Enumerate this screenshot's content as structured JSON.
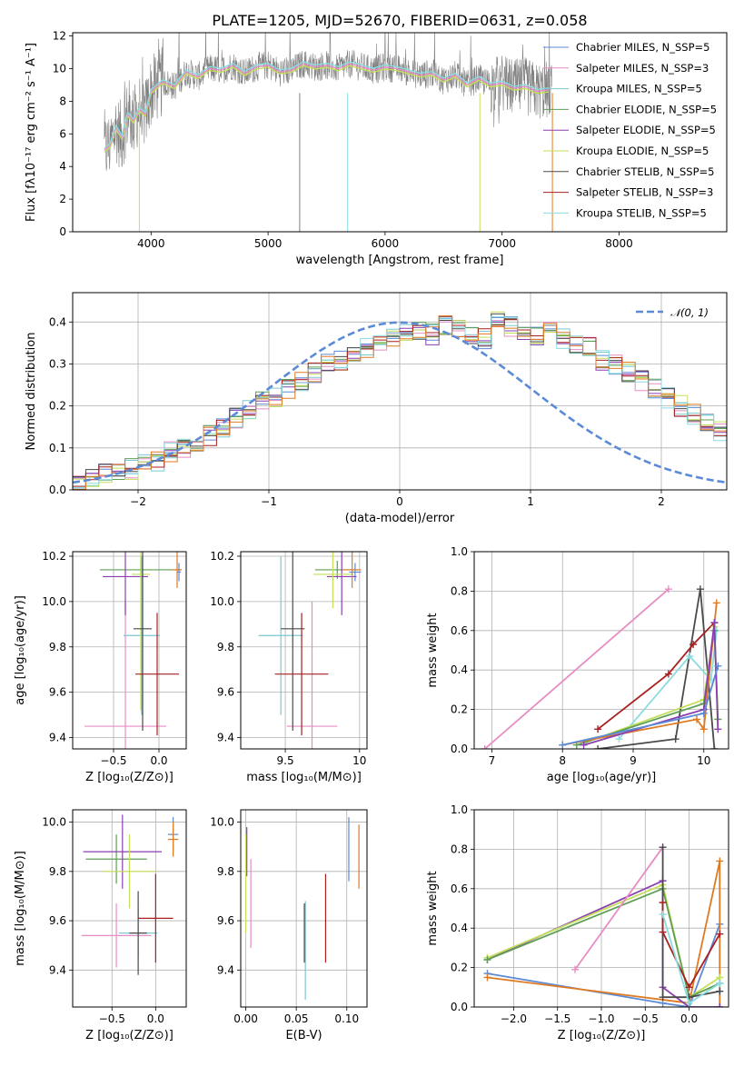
{
  "figure": {
    "title": "PLATE=1205, MJD=52670, FIBERID=0631, z=0.058"
  },
  "colors": {
    "Chabrier MILES": "#5b8ad6",
    "Salpeter MILES": "#e88cc4",
    "Kroupa MILES": "#7cc8d0",
    "Chabrier ELODIE": "#5e9f55",
    "Salpeter ELODIE": "#8b3fb0",
    "Kroupa ELODIE": "#c4df5a",
    "Chabrier STELIB": "#4a4a4a",
    "Salpeter STELIB": "#a82020",
    "Kroupa STELIB": "#8adce0",
    "data": "#808080",
    "orange": "#e07a20"
  },
  "chart_data": [
    {
      "id": "spectrum",
      "type": "line",
      "title": "PLATE=1205, MJD=52670, FIBERID=0631, z=0.058",
      "xlabel": "wavelength [Angstrom, rest frame]",
      "ylabel": "Flux [fλ10⁻¹⁷ erg cm⁻² s⁻¹ A⁻¹]",
      "xlim": [
        3330,
        8920
      ],
      "ylim": [
        0,
        12.2
      ],
      "xticks": [
        4000,
        5000,
        6000,
        7000,
        8000
      ],
      "yticks": [
        0,
        2,
        4,
        6,
        8,
        10,
        12
      ],
      "legend_position": "top-right",
      "series": [
        {
          "name": "Chabrier MILES, N_SSP=5"
        },
        {
          "name": "Salpeter MILES, N_SSP=3"
        },
        {
          "name": "Kroupa MILES, N_SSP=5"
        },
        {
          "name": "Chabrier ELODIE, N_SSP=5"
        },
        {
          "name": "Salpeter ELODIE, N_SSP=5"
        },
        {
          "name": "Kroupa ELODIE, N_SSP=5"
        },
        {
          "name": "Chabrier STELIB, N_SSP=5"
        },
        {
          "name": "Salpeter STELIB, N_SSP=3"
        },
        {
          "name": "Kroupa STELIB, N_SSP=5"
        }
      ],
      "model_curve": {
        "x": [
          3600,
          3650,
          3700,
          3750,
          3800,
          3850,
          3900,
          3950,
          4000,
          4100,
          4200,
          4300,
          4400,
          4500,
          4600,
          4700,
          4800,
          4900,
          5000,
          5100,
          5200,
          5300,
          5400,
          5500,
          5600,
          5700,
          5800,
          5900,
          6000,
          6100,
          6200,
          6300,
          6400,
          6500,
          6600,
          6700,
          6800,
          6900,
          7000,
          7100,
          7200,
          7300,
          7400
        ],
        "y": [
          5.0,
          5.3,
          6.4,
          5.8,
          7.2,
          6.8,
          7.5,
          7.2,
          8.6,
          9.2,
          8.9,
          9.8,
          9.5,
          10.0,
          9.9,
          10.2,
          9.7,
          10.1,
          10.2,
          9.8,
          9.9,
          10.3,
          10.1,
          10.2,
          10.0,
          10.3,
          10.1,
          9.9,
          10.1,
          10.0,
          9.8,
          9.6,
          9.7,
          9.3,
          9.6,
          9.0,
          9.4,
          9.0,
          9.1,
          8.8,
          8.9,
          8.6,
          8.7
        ]
      }
    },
    {
      "id": "residuals",
      "type": "histogram",
      "xlabel": "(data-model)/error",
      "ylabel": "Normed distribution",
      "xlim": [
        -2.5,
        2.5
      ],
      "ylim": [
        0,
        0.47
      ],
      "xticks": [
        -2,
        -1,
        0,
        1,
        2
      ],
      "xticklabels": [
        "−2",
        "−1",
        "0",
        "1",
        "2"
      ],
      "yticks": [
        0.0,
        0.1,
        0.2,
        0.3,
        0.4
      ],
      "legend": [
        "𝒩(0, 1)"
      ],
      "reference": {
        "name": "𝒩(0, 1)",
        "mean": 0,
        "sigma": 1
      },
      "bin_width": 0.1,
      "values": [
        0.02,
        0.03,
        0.04,
        0.04,
        0.05,
        0.06,
        0.07,
        0.09,
        0.1,
        0.11,
        0.13,
        0.15,
        0.17,
        0.19,
        0.21,
        0.22,
        0.24,
        0.26,
        0.28,
        0.3,
        0.31,
        0.33,
        0.34,
        0.35,
        0.36,
        0.38,
        0.38,
        0.37,
        0.39,
        0.38,
        0.37,
        0.36,
        0.4,
        0.39,
        0.38,
        0.37,
        0.38,
        0.36,
        0.35,
        0.34,
        0.31,
        0.3,
        0.28,
        0.26,
        0.24,
        0.22,
        0.2,
        0.18,
        0.16,
        0.14
      ]
    },
    {
      "id": "age-vs-Z",
      "type": "errorbar",
      "xlabel": "Z [log₁₀(Z/Z⊙)]",
      "ylabel": "age  [log₁₀(age/yr)]",
      "xlim": [
        -0.95,
        0.3
      ],
      "ylim": [
        9.35,
        10.22
      ],
      "xticks": [
        -0.5,
        0.0
      ],
      "xticklabels": [
        "−0.5",
        "0.0"
      ],
      "yticks": [
        9.4,
        9.6,
        9.8,
        10.0,
        10.2
      ],
      "points": [
        {
          "model": "Chabrier MILES",
          "x": 0.22,
          "y": 10.13,
          "xerr": 0.02,
          "yerr": 0.04
        },
        {
          "model": "Salpeter MILES",
          "x": -0.37,
          "y": 9.45,
          "xerr": 0.45,
          "yerr": 0.55
        },
        {
          "model": "Kroupa MILES",
          "x": -0.19,
          "y": 9.85,
          "xerr": 0.2,
          "yerr": 0.35
        },
        {
          "model": "Chabrier ELODIE",
          "x": -0.2,
          "y": 10.14,
          "xerr": 0.45,
          "yerr": 0.04
        },
        {
          "model": "Salpeter ELODIE",
          "x": -0.37,
          "y": 10.11,
          "xerr": 0.25,
          "yerr": 0.17
        },
        {
          "model": "Kroupa ELODIE",
          "x": -0.2,
          "y": 10.12,
          "xerr": 0.1,
          "yerr": 0.6
        },
        {
          "model": "Chabrier STELIB",
          "x": -0.18,
          "y": 9.88,
          "xerr": 0.1,
          "yerr": 0.45
        },
        {
          "model": "Salpeter STELIB",
          "x": -0.02,
          "y": 9.68,
          "xerr": 0.24,
          "yerr": 0.27
        },
        {
          "model": "orange",
          "x": 0.2,
          "y": 10.14,
          "xerr": 0.05,
          "yerr": 0.08
        }
      ]
    },
    {
      "id": "age-vs-mass",
      "type": "errorbar",
      "xlabel": "mass [log₁₀(M/M⊙)]",
      "xlim": [
        9.2,
        10.05
      ],
      "ylim": [
        9.35,
        10.22
      ],
      "xticks": [
        9.5,
        10.0
      ],
      "yticks": [
        9.4,
        9.6,
        9.8,
        10.0,
        10.2
      ],
      "points": [
        {
          "model": "Chabrier MILES",
          "x": 9.97,
          "y": 10.13,
          "xerr": 0.04,
          "yerr": 0.04
        },
        {
          "model": "Salpeter MILES",
          "x": 9.68,
          "y": 9.45,
          "xerr": 0.17,
          "yerr": 0.55
        },
        {
          "model": "Kroupa MILES",
          "x": 9.47,
          "y": 9.85,
          "xerr": 0.15,
          "yerr": 0.35
        },
        {
          "model": "Chabrier ELODIE",
          "x": 9.85,
          "y": 10.14,
          "xerr": 0.15,
          "yerr": 0.04
        },
        {
          "model": "Salpeter ELODIE",
          "x": 9.88,
          "y": 10.11,
          "xerr": 0.1,
          "yerr": 0.17
        },
        {
          "model": "Kroupa ELODIE",
          "x": 9.82,
          "y": 10.12,
          "xerr": 0.13,
          "yerr": 0.15
        },
        {
          "model": "Chabrier STELIB",
          "x": 9.55,
          "y": 9.88,
          "xerr": 0.08,
          "yerr": 0.45
        },
        {
          "model": "Salpeter STELIB",
          "x": 9.61,
          "y": 9.68,
          "xerr": 0.18,
          "yerr": 0.27
        },
        {
          "model": "orange",
          "x": 9.95,
          "y": 10.14,
          "xerr": 0.06,
          "yerr": 0.08
        }
      ]
    },
    {
      "id": "weight-vs-age",
      "type": "line",
      "xlabel": "age  [log₁₀(age/yr)]",
      "ylabel": "mass weight",
      "xlim": [
        6.75,
        10.35
      ],
      "ylim": [
        0,
        1.0
      ],
      "xticks": [
        7,
        8,
        9,
        10
      ],
      "yticks": [
        0.0,
        0.2,
        0.4,
        0.6,
        0.8,
        1.0
      ],
      "series": [
        {
          "name": "Salpeter MILES",
          "x": [
            6.9,
            9.5
          ],
          "y": [
            0.0,
            0.81
          ]
        },
        {
          "name": "Chabrier STELIB",
          "x": [
            8.5,
            9.6,
            9.95,
            10.15
          ],
          "y": [
            0.0,
            0.05,
            0.81,
            0.0
          ]
        },
        {
          "name": "Salpeter STELIB",
          "x": [
            8.5,
            9.5,
            9.85,
            10.15
          ],
          "y": [
            0.1,
            0.38,
            0.53,
            0.64
          ]
        },
        {
          "name": "Kroupa STELIB",
          "x": [
            8.8,
            9.8,
            10.1,
            10.18
          ],
          "y": [
            0.05,
            0.47,
            0.35,
            0.6
          ]
        },
        {
          "name": "Kroupa ELODIE",
          "x": [
            8.3,
            10.0,
            10.15,
            10.2
          ],
          "y": [
            0.03,
            0.25,
            0.62,
            0.15
          ]
        },
        {
          "name": "Chabrier ELODIE",
          "x": [
            8.2,
            10.0,
            10.15,
            10.2
          ],
          "y": [
            0.02,
            0.23,
            0.6,
            0.15
          ]
        },
        {
          "name": "orange",
          "x": [
            8.0,
            9.9,
            10.0,
            10.18
          ],
          "y": [
            0.02,
            0.15,
            0.1,
            0.74
          ]
        },
        {
          "name": "Salpeter ELODIE",
          "x": [
            8.3,
            10.0,
            10.15,
            10.2
          ],
          "y": [
            0.02,
            0.2,
            0.64,
            0.1
          ]
        },
        {
          "name": "Chabrier MILES",
          "x": [
            8.0,
            10.0,
            10.2
          ],
          "y": [
            0.02,
            0.18,
            0.42
          ]
        }
      ]
    },
    {
      "id": "mass-vs-Z",
      "type": "errorbar",
      "xlabel": "Z [log₁₀(Z/Z⊙)]",
      "ylabel": "mass [log₁₀(M/M⊙)]",
      "xlim": [
        -0.95,
        0.35
      ],
      "ylim": [
        9.25,
        10.05
      ],
      "xticks": [
        -0.5,
        0.0
      ],
      "xticklabels": [
        "−0.5",
        "0.0"
      ],
      "yticks": [
        9.4,
        9.6,
        9.8,
        10.0
      ],
      "points": [
        {
          "model": "Chabrier MILES",
          "x": 0.2,
          "y": 9.95,
          "xerr": 0.06,
          "yerr": 0.07
        },
        {
          "model": "Salpeter MILES",
          "x": -0.45,
          "y": 9.54,
          "xerr": 0.4,
          "yerr": 0.13
        },
        {
          "model": "Kroupa MILES",
          "x": -0.2,
          "y": 9.55,
          "xerr": 0.22,
          "yerr": 0.1
        },
        {
          "model": "Chabrier ELODIE",
          "x": -0.45,
          "y": 9.85,
          "xerr": 0.35,
          "yerr": 0.1
        },
        {
          "model": "Salpeter ELODIE",
          "x": -0.38,
          "y": 9.88,
          "xerr": 0.45,
          "yerr": 0.15
        },
        {
          "model": "Kroupa ELODIE",
          "x": -0.3,
          "y": 9.8,
          "xerr": 0.3,
          "yerr": 0.15
        },
        {
          "model": "Chabrier STELIB",
          "x": -0.2,
          "y": 9.55,
          "xerr": 0.1,
          "yerr": 0.17
        },
        {
          "model": "Salpeter STELIB",
          "x": 0.0,
          "y": 9.61,
          "xerr": 0.2,
          "yerr": 0.18
        },
        {
          "model": "orange",
          "x": 0.2,
          "y": 9.93,
          "xerr": 0.06,
          "yerr": 0.07
        }
      ]
    },
    {
      "id": "mass-vs-EBV",
      "type": "errorbar",
      "xlabel": "E(B-V)",
      "xlim": [
        -0.005,
        0.12
      ],
      "ylim": [
        9.25,
        10.05
      ],
      "xticks": [
        0.0,
        0.05,
        0.1
      ],
      "xticklabels": [
        "0.00",
        "0.05",
        "0.10"
      ],
      "yticks": [
        9.4,
        9.6,
        9.8,
        10.0
      ],
      "points": [
        {
          "model": "Chabrier MILES",
          "x": 0.102,
          "y": 9.89,
          "xerr": 0,
          "yerr": 0.13
        },
        {
          "model": "Salpeter MILES",
          "x": 0.005,
          "y": 9.67,
          "xerr": 0,
          "yerr": 0.18
        },
        {
          "model": "Kroupa MILES",
          "x": 0.059,
          "y": 9.48,
          "xerr": 0,
          "yerr": 0.2
        },
        {
          "model": "Salpeter ELODIE",
          "x": 0.001,
          "y": 9.88,
          "xerr": 0,
          "yerr": 0.1
        },
        {
          "model": "Kroupa ELODIE",
          "x": 0.0,
          "y": 9.75,
          "xerr": 0,
          "yerr": 0.2
        },
        {
          "model": "Chabrier STELIB",
          "x": 0.058,
          "y": 9.55,
          "xerr": 0,
          "yerr": 0.12
        },
        {
          "model": "Salpeter STELIB",
          "x": 0.079,
          "y": 9.61,
          "xerr": 0,
          "yerr": 0.18
        },
        {
          "model": "orange",
          "x": 0.112,
          "y": 9.86,
          "xerr": 0,
          "yerr": 0.13
        }
      ]
    },
    {
      "id": "weight-vs-Z",
      "type": "line",
      "xlabel": "Z [log₁₀(Z/Z⊙)]",
      "ylabel": "mass weight",
      "xlim": [
        -2.45,
        0.45
      ],
      "ylim": [
        0,
        1.0
      ],
      "xticks": [
        -2.0,
        -1.5,
        -1.0,
        -0.5,
        0.0
      ],
      "xticklabels": [
        "−2.0",
        "−1.5",
        "−1.0",
        "−0.5",
        "0.0"
      ],
      "yticks": [
        0.0,
        0.2,
        0.4,
        0.6,
        0.8,
        1.0
      ],
      "series": [
        {
          "name": "Chabrier MILES",
          "x": [
            -2.3,
            -0.3,
            0.0,
            0.35
          ],
          "y": [
            0.17,
            0.02,
            0.0,
            0.42
          ]
        },
        {
          "name": "orange",
          "x": [
            -2.3,
            0.0,
            0.35,
            0.35
          ],
          "y": [
            0.15,
            0.02,
            0.74,
            0.0
          ]
        },
        {
          "name": "Salpeter ELODIE",
          "x": [
            -2.3,
            -0.3,
            -0.3,
            0.0,
            0.35
          ],
          "y": [
            0.24,
            0.64,
            0.1,
            0.0,
            0.0
          ]
        },
        {
          "name": "Kroupa ELODIE",
          "x": [
            -2.3,
            -0.3,
            0.0,
            0.35
          ],
          "y": [
            0.25,
            0.62,
            0.05,
            0.15
          ]
        },
        {
          "name": "Chabrier ELODIE",
          "x": [
            -2.3,
            -0.3,
            0.0,
            0.35
          ],
          "y": [
            0.24,
            0.6,
            0.05,
            0.12
          ]
        },
        {
          "name": "Salpeter MILES",
          "x": [
            -1.3,
            -0.3
          ],
          "y": [
            0.19,
            0.81
          ]
        },
        {
          "name": "Chabrier STELIB",
          "x": [
            -0.3,
            -0.3,
            0.0,
            0.35
          ],
          "y": [
            0.81,
            0.05,
            0.05,
            0.08
          ]
        },
        {
          "name": "Salpeter STELIB",
          "x": [
            -0.3,
            -0.3,
            0.0,
            0.35
          ],
          "y": [
            0.53,
            0.38,
            0.1,
            0.37
          ]
        },
        {
          "name": "Kroupa STELIB",
          "x": [
            -0.3,
            0.0,
            0.35
          ],
          "y": [
            0.47,
            0.02,
            0.12
          ]
        }
      ]
    }
  ]
}
